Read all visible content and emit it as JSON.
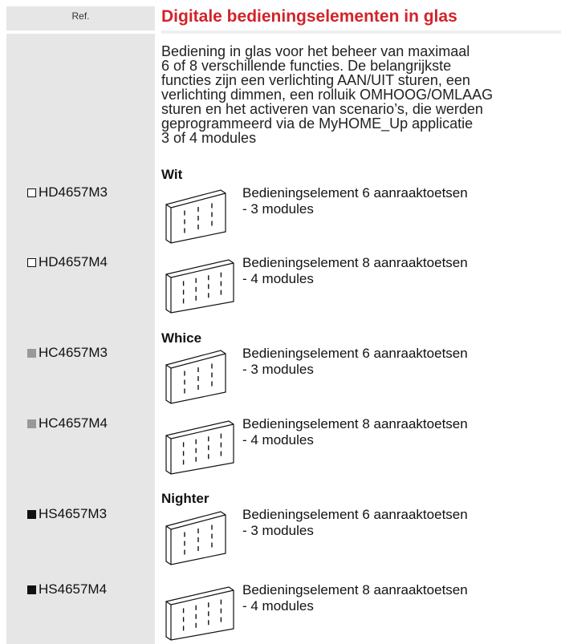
{
  "header": {
    "ref": "Ref.",
    "title": "Digitale bedieningselementen in glas"
  },
  "description": [
    "Bediening in glas voor het beheer van maximaal",
    "6 of 8 verschillende functies. De belangrijkste",
    "functies zijn een verlichting AAN/UIT sturen, een",
    "verlichting dimmen, een rolluik OMHOOG/OMLAAG",
    "sturen en het activeren van scenario’s, die werden",
    "geprogrammeerd via de MyHOME_Up applicatie",
    "3 of 4 modules"
  ],
  "groups": [
    {
      "name": "Wit",
      "items": [
        {
          "ref": "HD4657M3",
          "description": [
            "Bedieningselement 6 aanraaktoetsen",
            "- 3 modules"
          ]
        },
        {
          "ref": "HD4657M4",
          "description": [
            "Bedieningselement 8 aanraaktoetsen",
            "- 4 modules"
          ]
        }
      ]
    },
    {
      "name": "Whice",
      "items": [
        {
          "ref": "HC4657M3",
          "description": [
            "Bedieningselement 6 aanraaktoetsen",
            "- 3 modules"
          ]
        },
        {
          "ref": "HC4657M4",
          "description": [
            "Bedieningselement 8 aanraaktoetsen",
            "- 4 modules"
          ]
        }
      ]
    },
    {
      "name": "Nighter",
      "items": [
        {
          "ref": "HS4657M3",
          "description": [
            "Bedieningselement 6 aanraaktoetsen",
            "- 3 modules"
          ]
        },
        {
          "ref": "HS4657M4",
          "description": [
            "Bedieningselement 8 aanraaktoetsen",
            "- 4 modules"
          ]
        }
      ]
    }
  ]
}
